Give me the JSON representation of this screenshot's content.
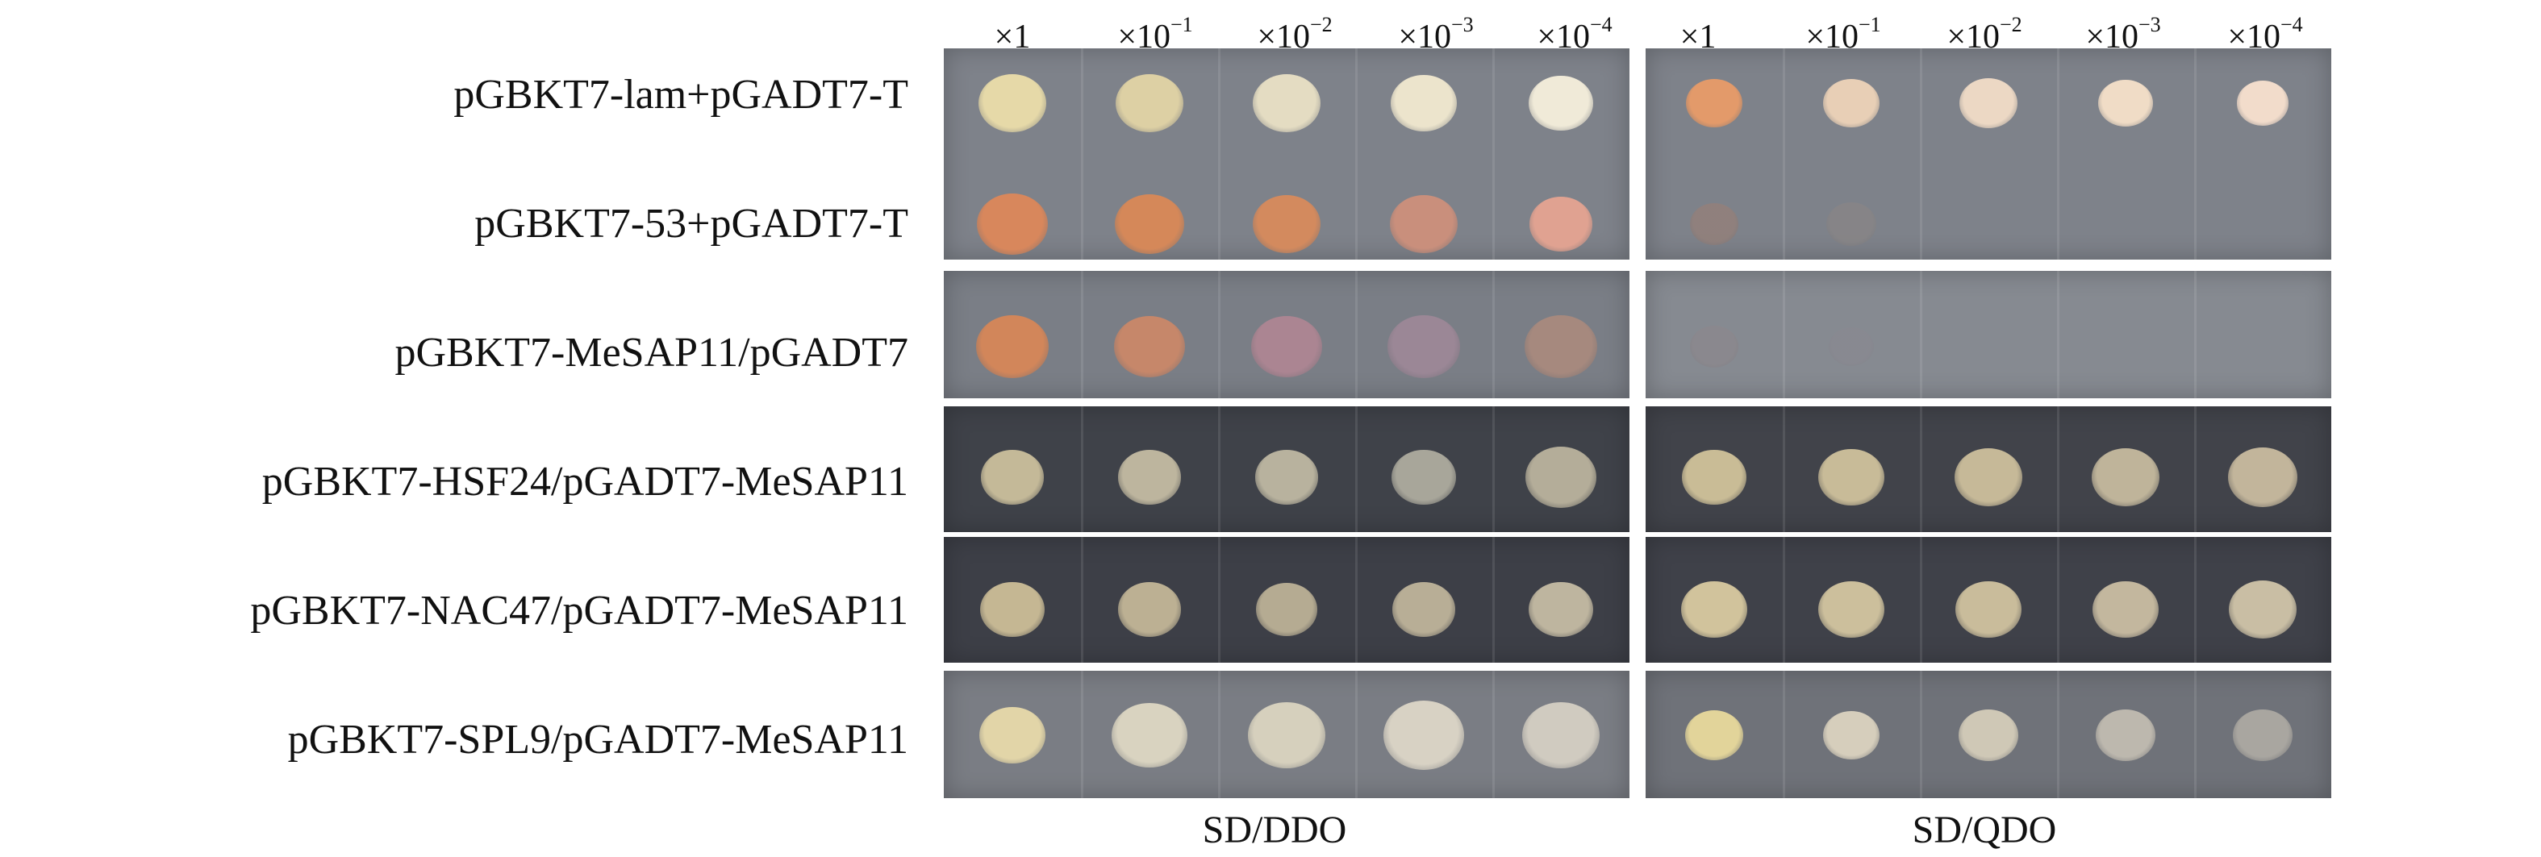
{
  "dilutions": [
    {
      "base": "×1",
      "exp": ""
    },
    {
      "base": "×10",
      "exp": "−1"
    },
    {
      "base": "×10",
      "exp": "−2"
    },
    {
      "base": "×10",
      "exp": "−3"
    },
    {
      "base": "×10",
      "exp": "−4"
    }
  ],
  "rows": [
    {
      "label": "pGBKT7-lam+pGADT7-T"
    },
    {
      "label": "pGBKT7-53+pGADT7-T"
    },
    {
      "label": "pGBKT7-MeSAP11/pGADT7"
    },
    {
      "label": "pGBKT7-HSF24/pGADT7-MeSAP11"
    },
    {
      "label": "pGBKT7-NAC47/pGADT7-MeSAP11"
    },
    {
      "label": "pGBKT7-SPL9/pGADT7-MeSAP11"
    }
  ],
  "media": {
    "left": "SD/DDO",
    "right": "SD/QDO"
  },
  "colors": {
    "plate_light": "#7d8189",
    "plate_dark": "#3f4149",
    "colony_cream": "#e8dcb4",
    "colony_orange": "#d58a5e",
    "colony_tan": "#c8b994"
  }
}
